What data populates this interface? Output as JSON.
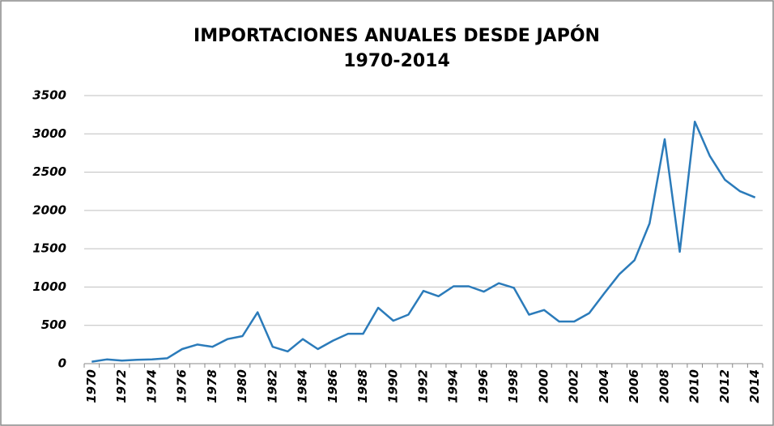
{
  "chart_data": {
    "type": "line",
    "title": "IMPORTACIONES ANUALES DESDE JAPÓN",
    "subtitle": "1970-2014",
    "categories": [
      "1970",
      null,
      "1972",
      null,
      "1974",
      null,
      "1976",
      null,
      "1978",
      null,
      "1980",
      null,
      "1982",
      null,
      "1984",
      null,
      "1986",
      null,
      "1988",
      null,
      "1990",
      null,
      "1992",
      null,
      "1994",
      null,
      "1996",
      null,
      "1998",
      null,
      "2000",
      null,
      "2002",
      null,
      "2004",
      null,
      "2006",
      null,
      "2008",
      null,
      "2010",
      null,
      "2012",
      null,
      "2014"
    ],
    "series": [
      {
        "color": "#2b7bba",
        "values": [
          25,
          55,
          40,
          50,
          55,
          70,
          190,
          250,
          220,
          320,
          360,
          670,
          220,
          160,
          320,
          190,
          300,
          390,
          390,
          730,
          560,
          640,
          950,
          880,
          1010,
          1010,
          940,
          1050,
          990,
          640,
          700,
          550,
          550,
          660,
          920,
          1170,
          1350,
          1830,
          2930,
          1460,
          3160,
          2710,
          2400,
          2250,
          2170
        ]
      }
    ],
    "ylim": [
      0,
      3500
    ],
    "yticks": [
      0,
      500,
      1000,
      1500,
      2000,
      2500,
      3000,
      3500
    ],
    "grid": true
  }
}
